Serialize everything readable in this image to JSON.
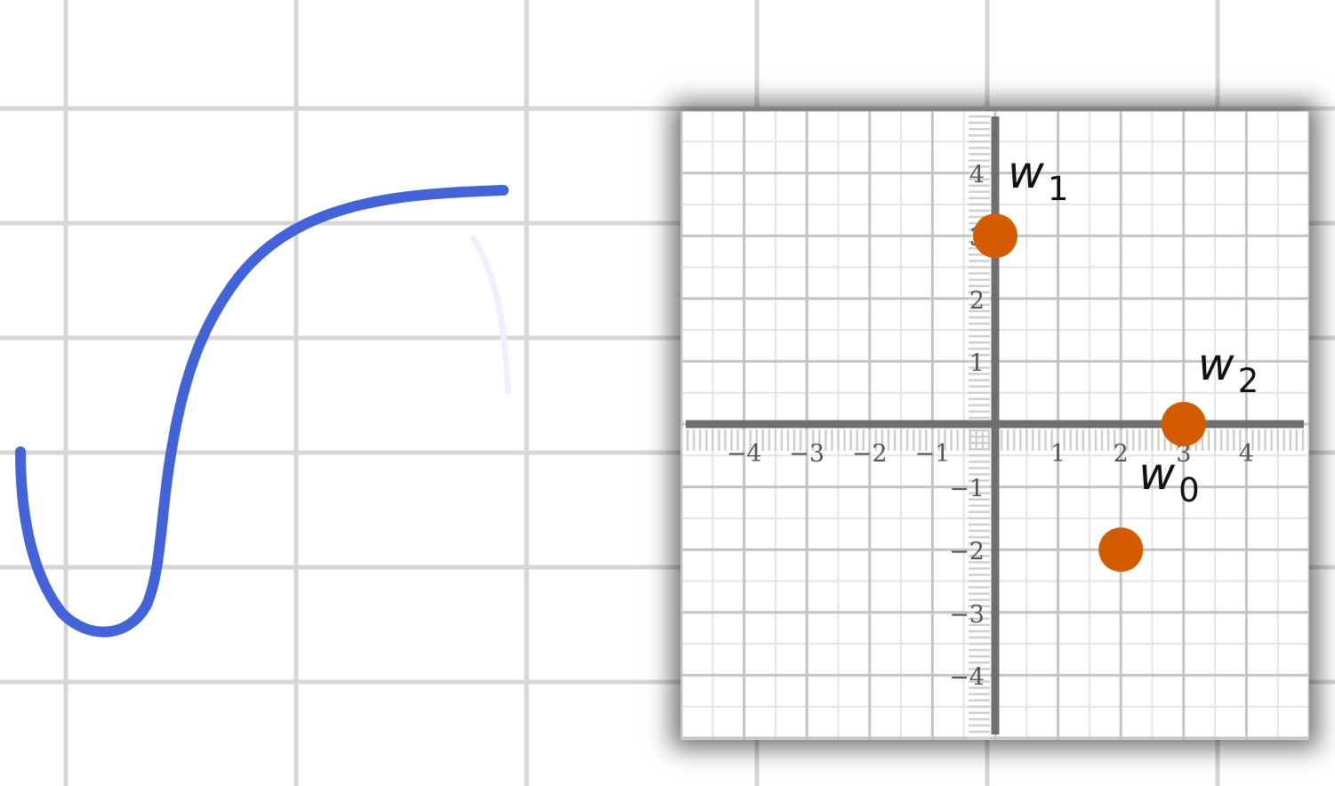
{
  "canvas": {
    "grid_color": "#d6d6d6",
    "ink_color": "#4363d8"
  },
  "chart_data": {
    "type": "scatter",
    "xlim": [
      -5,
      5
    ],
    "ylim": [
      -5,
      5
    ],
    "x_ticks": [
      -4,
      -3,
      -2,
      -1,
      1,
      2,
      3,
      4
    ],
    "y_ticks": [
      4,
      3,
      2,
      1,
      -1,
      -2,
      -3,
      -4
    ],
    "x_tick_labels": [
      "−4",
      "−3",
      "−2",
      "−1",
      "1",
      "2",
      "3",
      "4"
    ],
    "y_tick_labels": [
      "4",
      "3",
      "2",
      "1",
      "−1",
      "−2",
      "−3",
      "−4"
    ],
    "grid": true,
    "point_color": "#d35c00",
    "points": [
      {
        "name": "w",
        "sub": "0",
        "x": 2,
        "y": -2
      },
      {
        "name": "w",
        "sub": "1",
        "x": 0,
        "y": 3
      },
      {
        "name": "w",
        "sub": "2",
        "x": 3,
        "y": 0
      }
    ]
  }
}
